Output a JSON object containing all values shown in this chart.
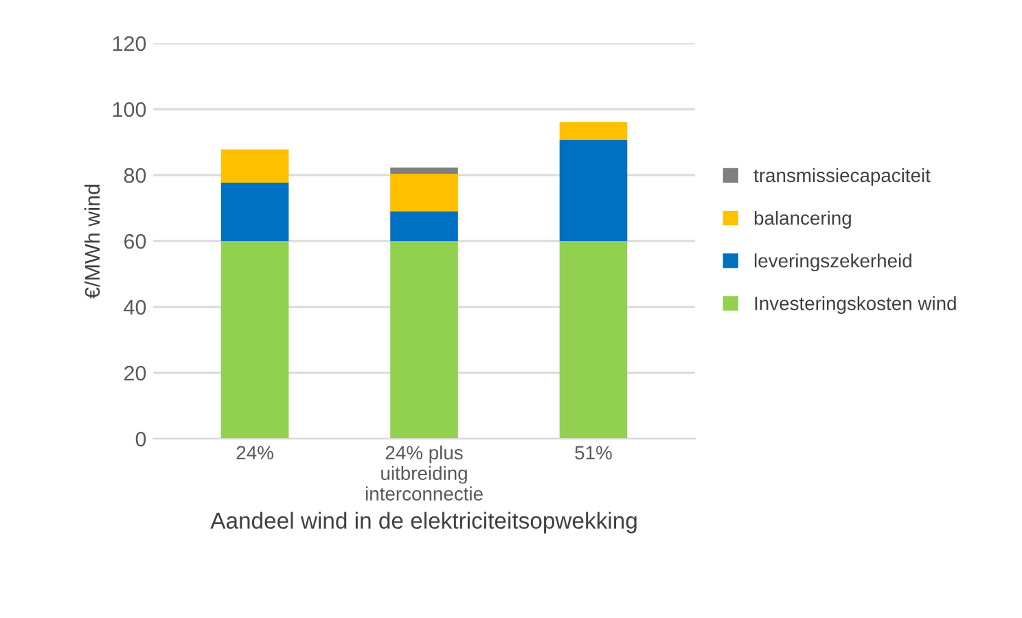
{
  "chart_data": {
    "type": "bar",
    "stacked": true,
    "xlabel": "Aandeel wind in de elektriciteitsopwekking",
    "ylabel": "€/MWh wind",
    "categories": [
      "24%",
      "24% plus\nuitbreiding\ninterconnectie",
      "51%"
    ],
    "series": [
      {
        "name": "Investeringskosten wind",
        "color": "#92d050",
        "values": [
          60,
          60,
          60
        ]
      },
      {
        "name": "leveringszekerheid",
        "color": "#0070c0",
        "values": [
          17.7,
          9,
          30.6
        ]
      },
      {
        "name": "balancering",
        "color": "#ffc000",
        "values": [
          10.1,
          11.4,
          5.5
        ]
      },
      {
        "name": "transmissiecapaciteit",
        "color": "#7f7f7f",
        "values": [
          0,
          1.9,
          0
        ]
      }
    ],
    "ylim": [
      0,
      120
    ],
    "yticks": [
      0,
      20,
      40,
      60,
      80,
      100,
      120
    ],
    "grid": "y",
    "legend": "right"
  }
}
